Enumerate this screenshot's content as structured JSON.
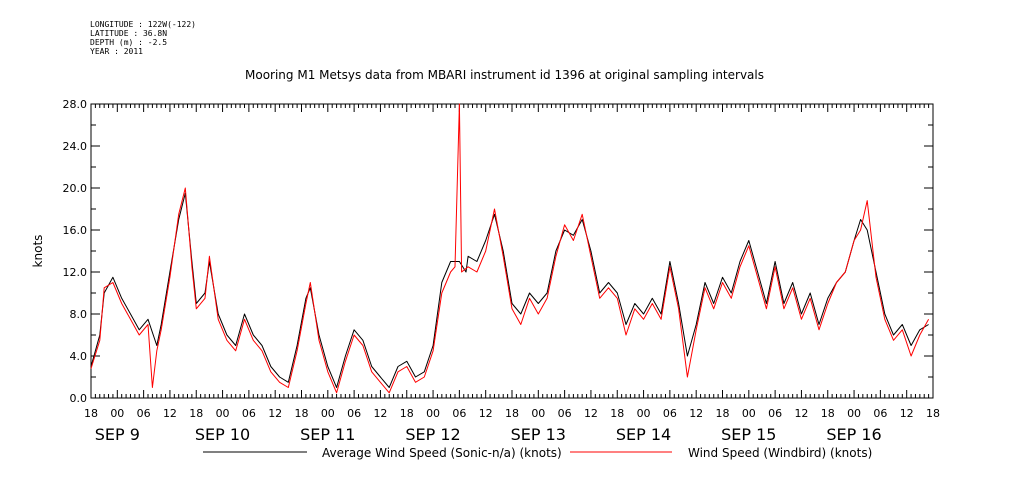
{
  "header": {
    "longitude": "LONGITUDE : 122W(-122)",
    "latitude": "LATITUDE : 36.8N",
    "depth": "DEPTH (m) : -2.5",
    "year": "YEAR : 2011"
  },
  "chart_data": {
    "type": "line",
    "title": "Mooring M1 Metsys data from MBARI instrument id 1396 at original sampling intervals",
    "ylabel": "knots",
    "ylim": [
      0,
      28
    ],
    "yticks": [
      0.0,
      4.0,
      8.0,
      12.0,
      16.0,
      20.0,
      24.0,
      28.0
    ],
    "ytick_labels": [
      "0.0",
      "4.0",
      "8.0",
      "12.0",
      "16.0",
      "20.0",
      "24.0",
      "28.0"
    ],
    "xlim_hours_from_sep9_00": [
      -6,
      186
    ],
    "hour_tick_labels": [
      "18",
      "00",
      "06",
      "12",
      "18",
      "00",
      "06",
      "12",
      "18",
      "00",
      "06",
      "12",
      "18",
      "00",
      "06",
      "12",
      "18",
      "00",
      "06",
      "12",
      "18",
      "00",
      "06",
      "12",
      "18",
      "00",
      "06",
      "12",
      "18",
      "00",
      "06",
      "12",
      "18"
    ],
    "day_labels": [
      "SEP  9",
      "SEP 10",
      "SEP 11",
      "SEP 12",
      "SEP 13",
      "SEP 14",
      "SEP 15",
      "SEP 16"
    ],
    "legend": "bottom",
    "series": [
      {
        "name": "Average Wind Speed (Sonic-n/a) (knots)",
        "color": "#000000",
        "points": [
          [
            -6,
            3
          ],
          [
            -4,
            6
          ],
          [
            -3,
            10
          ],
          [
            -1,
            11.5
          ],
          [
            1,
            9.5
          ],
          [
            3,
            8
          ],
          [
            5,
            6.5
          ],
          [
            7,
            7.5
          ],
          [
            9,
            5
          ],
          [
            10,
            7
          ],
          [
            12,
            12
          ],
          [
            14,
            17
          ],
          [
            15.5,
            19.5
          ],
          [
            17,
            13
          ],
          [
            18,
            9
          ],
          [
            20,
            10
          ],
          [
            21,
            13
          ],
          [
            23,
            8
          ],
          [
            25,
            6
          ],
          [
            27,
            5
          ],
          [
            29,
            8
          ],
          [
            31,
            6
          ],
          [
            33,
            5
          ],
          [
            35,
            3
          ],
          [
            37,
            2
          ],
          [
            39,
            1.5
          ],
          [
            41,
            5
          ],
          [
            43,
            9.5
          ],
          [
            44,
            10.5
          ],
          [
            46,
            6
          ],
          [
            48,
            3
          ],
          [
            50,
            1
          ],
          [
            52,
            4
          ],
          [
            54,
            6.5
          ],
          [
            56,
            5.5
          ],
          [
            58,
            3
          ],
          [
            60,
            2
          ],
          [
            62,
            1
          ],
          [
            64,
            3
          ],
          [
            66,
            3.5
          ],
          [
            68,
            2
          ],
          [
            70,
            2.5
          ],
          [
            72,
            5
          ],
          [
            74,
            11
          ],
          [
            76,
            13
          ],
          [
            78,
            13
          ],
          [
            79.5,
            12
          ],
          [
            80,
            13.5
          ],
          [
            82,
            13
          ],
          [
            84,
            15
          ],
          [
            86,
            17.5
          ],
          [
            88,
            14
          ],
          [
            90,
            9
          ],
          [
            92,
            8
          ],
          [
            94,
            10
          ],
          [
            96,
            9
          ],
          [
            98,
            10
          ],
          [
            100,
            14
          ],
          [
            102,
            16
          ],
          [
            104,
            15.5
          ],
          [
            106,
            17
          ],
          [
            108,
            14
          ],
          [
            110,
            10
          ],
          [
            112,
            11
          ],
          [
            114,
            10
          ],
          [
            116,
            7
          ],
          [
            118,
            9
          ],
          [
            120,
            8
          ],
          [
            122,
            9.5
          ],
          [
            124,
            8
          ],
          [
            126,
            13
          ],
          [
            128,
            9
          ],
          [
            130,
            4
          ],
          [
            132,
            7
          ],
          [
            134,
            11
          ],
          [
            136,
            9
          ],
          [
            138,
            11.5
          ],
          [
            140,
            10
          ],
          [
            142,
            13
          ],
          [
            144,
            15
          ],
          [
            146,
            12
          ],
          [
            148,
            9
          ],
          [
            150,
            13
          ],
          [
            152,
            9
          ],
          [
            154,
            11
          ],
          [
            156,
            8
          ],
          [
            158,
            10
          ],
          [
            160,
            7
          ],
          [
            162,
            9.5
          ],
          [
            164,
            11
          ],
          [
            166,
            12
          ],
          [
            168,
            15
          ],
          [
            169.5,
            17
          ],
          [
            171,
            16
          ],
          [
            173,
            12
          ],
          [
            175,
            8
          ],
          [
            177,
            6
          ],
          [
            179,
            7
          ],
          [
            181,
            5
          ],
          [
            183,
            6.5
          ],
          [
            185,
            7
          ]
        ]
      },
      {
        "name": "Wind Speed (Windbird) (knots)",
        "color": "#ff0000",
        "points": [
          [
            -6,
            2.8
          ],
          [
            -4,
            5.5
          ],
          [
            -3,
            10.5
          ],
          [
            -1,
            11
          ],
          [
            1,
            9
          ],
          [
            3,
            7.5
          ],
          [
            5,
            6
          ],
          [
            7,
            7
          ],
          [
            8,
            1
          ],
          [
            9,
            4.5
          ],
          [
            10,
            6.5
          ],
          [
            12,
            11.5
          ],
          [
            14,
            17.5
          ],
          [
            15.5,
            20
          ],
          [
            17,
            12.5
          ],
          [
            18,
            8.5
          ],
          [
            20,
            9.5
          ],
          [
            21,
            13.5
          ],
          [
            23,
            7.5
          ],
          [
            25,
            5.5
          ],
          [
            27,
            4.5
          ],
          [
            29,
            7.5
          ],
          [
            31,
            5.5
          ],
          [
            33,
            4.5
          ],
          [
            35,
            2.5
          ],
          [
            37,
            1.5
          ],
          [
            39,
            1
          ],
          [
            41,
            4.5
          ],
          [
            43,
            9
          ],
          [
            44,
            11
          ],
          [
            46,
            5.5
          ],
          [
            48,
            2.5
          ],
          [
            50,
            0.5
          ],
          [
            52,
            3.5
          ],
          [
            54,
            6
          ],
          [
            56,
            5
          ],
          [
            58,
            2.5
          ],
          [
            60,
            1.5
          ],
          [
            62,
            0.5
          ],
          [
            64,
            2.5
          ],
          [
            66,
            3
          ],
          [
            68,
            1.5
          ],
          [
            70,
            2
          ],
          [
            72,
            4.5
          ],
          [
            74,
            10
          ],
          [
            76,
            12
          ],
          [
            77,
            12.5
          ],
          [
            78,
            28
          ],
          [
            78.5,
            12
          ],
          [
            80,
            12.5
          ],
          [
            82,
            12
          ],
          [
            84,
            14
          ],
          [
            86,
            18
          ],
          [
            88,
            13.5
          ],
          [
            90,
            8.5
          ],
          [
            92,
            7
          ],
          [
            94,
            9.5
          ],
          [
            96,
            8
          ],
          [
            98,
            9.5
          ],
          [
            100,
            13.5
          ],
          [
            102,
            16.5
          ],
          [
            104,
            15
          ],
          [
            106,
            17.5
          ],
          [
            108,
            13.5
          ],
          [
            110,
            9.5
          ],
          [
            112,
            10.5
          ],
          [
            114,
            9.5
          ],
          [
            116,
            6
          ],
          [
            118,
            8.5
          ],
          [
            120,
            7.5
          ],
          [
            122,
            9
          ],
          [
            124,
            7.5
          ],
          [
            126,
            12.5
          ],
          [
            128,
            8.5
          ],
          [
            130,
            2
          ],
          [
            132,
            6.5
          ],
          [
            134,
            10.5
          ],
          [
            136,
            8.5
          ],
          [
            138,
            11
          ],
          [
            140,
            9.5
          ],
          [
            142,
            12.5
          ],
          [
            144,
            14.5
          ],
          [
            146,
            11.5
          ],
          [
            148,
            8.5
          ],
          [
            150,
            12.5
          ],
          [
            152,
            8.5
          ],
          [
            154,
            10.5
          ],
          [
            156,
            7.5
          ],
          [
            158,
            9.5
          ],
          [
            160,
            6.5
          ],
          [
            162,
            9
          ],
          [
            164,
            11
          ],
          [
            166,
            12
          ],
          [
            168,
            15
          ],
          [
            169.5,
            16
          ],
          [
            171,
            18.8
          ],
          [
            173,
            11.5
          ],
          [
            175,
            7.5
          ],
          [
            177,
            5.5
          ],
          [
            179,
            6.5
          ],
          [
            181,
            4
          ],
          [
            183,
            6
          ],
          [
            185,
            7.5
          ]
        ]
      }
    ]
  }
}
